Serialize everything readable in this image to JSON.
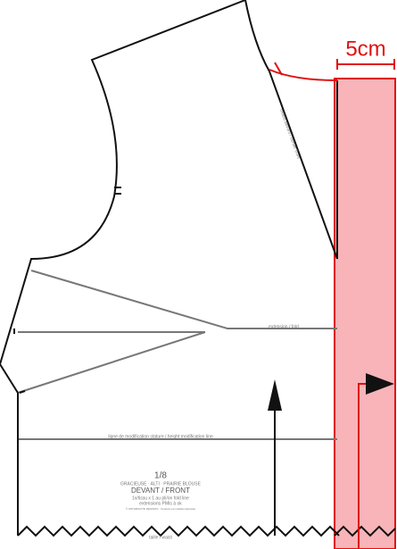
{
  "dimension": {
    "label": "5cm"
  },
  "piece": {
    "count": "1/8",
    "models": "GRACIEUSE · ALTI · PRAIRIE BLOUSE",
    "name": "DEVANT / FRONT",
    "cut_note": "1x/tissu x 1 au pli/on fold line",
    "notes": "extensions PMIs à ok",
    "copyright": "© ANTHRACITE DESIGNS · Contenu et modèles déposés"
  },
  "lines": {
    "height_line": "ligne de modification stature / height modification line",
    "fold_label": "extension / fold",
    "footer": "taille / waist",
    "edge_label": "milieu devant / center front"
  }
}
